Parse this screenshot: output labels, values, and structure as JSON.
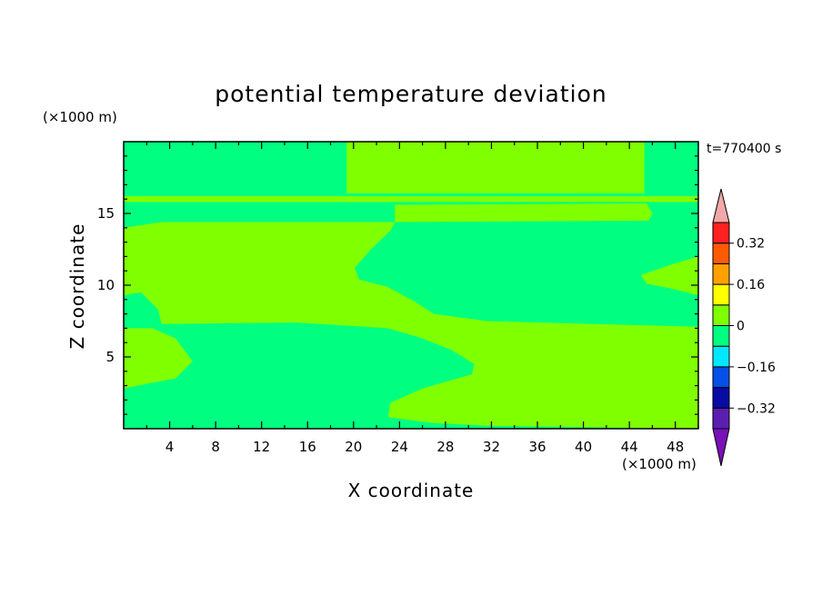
{
  "chart_data": {
    "type": "heatmap",
    "title": "potential temperature deviation",
    "xlabel": "X coordinate",
    "ylabel": "Z coordinate",
    "x_unit": "(×1000 m)",
    "y_unit": "(×1000 m)",
    "time_label": "t=770400 s",
    "xlim": [
      0,
      50
    ],
    "ylim": [
      0,
      20
    ],
    "x_ticks": [
      4,
      8,
      12,
      16,
      20,
      24,
      28,
      32,
      36,
      40,
      44,
      48
    ],
    "y_ticks": [
      5,
      10,
      15
    ],
    "colorbar": {
      "tick_values": [
        0.32,
        0.16,
        0,
        -0.16,
        -0.32
      ],
      "tick_labels": [
        "0.32",
        "0.16",
        "0",
        "−0.16",
        "−0.32"
      ],
      "levels": [
        -0.4,
        -0.32,
        -0.24,
        -0.16,
        -0.08,
        0,
        0.08,
        0.16,
        0.24,
        0.32,
        0.4
      ],
      "colors": [
        "#5a1fb0",
        "#0a0aa5",
        "#0550e6",
        "#00e8ff",
        "#00ff80",
        "#80ff00",
        "#ffff00",
        "#ffa000",
        "#ff5a00",
        "#ff2020"
      ],
      "under_color": "#7a10b8",
      "over_color": "#f2a8a8"
    },
    "background_color": "#00ff80",
    "regions": [
      {
        "level": "0_to_0.08",
        "color": "#80ff00",
        "points": [
          [
            19.4,
            20
          ],
          [
            45.3,
            20
          ],
          [
            45.3,
            16.4
          ],
          [
            19.4,
            16.4
          ]
        ]
      },
      {
        "level": "0_to_0.08",
        "color": "#80ff00",
        "points": [
          [
            0,
            16.2
          ],
          [
            50,
            16.2
          ],
          [
            50,
            15.8
          ],
          [
            0,
            15.8
          ]
        ]
      },
      {
        "level": "0_to_0.08",
        "color": "#80ff00",
        "points": [
          [
            23.6,
            15.6
          ],
          [
            45.5,
            15.7
          ],
          [
            46.0,
            15.0
          ],
          [
            45.7,
            14.5
          ],
          [
            23.6,
            14.4
          ],
          [
            23.6,
            15.0
          ]
        ]
      },
      {
        "level": "0_to_0.08",
        "color": "#80ff00",
        "points": [
          [
            0,
            14.0
          ],
          [
            3.3,
            14.4
          ],
          [
            8.0,
            14.4
          ],
          [
            20.8,
            14.4
          ],
          [
            23.6,
            14.4
          ],
          [
            23.2,
            13.8
          ],
          [
            21.5,
            12.5
          ],
          [
            20.1,
            11.2
          ],
          [
            20.5,
            10.4
          ],
          [
            22.9,
            9.9
          ],
          [
            25.0,
            9.0
          ],
          [
            27.0,
            8.0
          ],
          [
            31.6,
            7.5
          ],
          [
            50,
            7.1
          ],
          [
            50,
            0.4
          ],
          [
            50,
            0
          ],
          [
            31.8,
            0.2
          ],
          [
            27.0,
            0.4
          ],
          [
            23.0,
            0.8
          ],
          [
            23.2,
            1.8
          ],
          [
            26.0,
            2.8
          ],
          [
            30.3,
            3.8
          ],
          [
            30.5,
            4.5
          ],
          [
            28.5,
            5.5
          ],
          [
            26.0,
            6.3
          ],
          [
            23.0,
            7.0
          ],
          [
            15.0,
            7.4
          ],
          [
            3.3,
            7.3
          ],
          [
            3.0,
            8.3
          ],
          [
            1.5,
            9.5
          ],
          [
            0,
            9.3
          ]
        ]
      },
      {
        "level": "0_to_0.08",
        "color": "#80ff00",
        "points": [
          [
            0,
            7.0
          ],
          [
            2.5,
            7.0
          ],
          [
            4.5,
            6.3
          ],
          [
            6.0,
            4.7
          ],
          [
            4.5,
            3.5
          ],
          [
            2.5,
            3.2
          ],
          [
            0,
            2.8
          ]
        ]
      },
      {
        "level": "0_to_0.08",
        "color": "#80ff00",
        "points": [
          [
            50,
            12.0
          ],
          [
            47.5,
            11.4
          ],
          [
            45.0,
            10.7
          ],
          [
            45.5,
            10.1
          ],
          [
            47.5,
            9.8
          ],
          [
            50,
            9.3
          ]
        ]
      }
    ]
  }
}
